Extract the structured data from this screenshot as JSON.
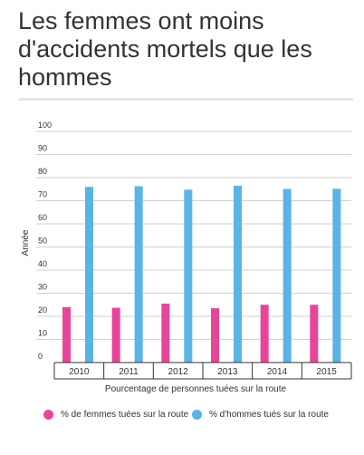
{
  "title": "Les femmes ont moins d'accidents mortels que les hommes",
  "chart_data": {
    "type": "bar",
    "categories": [
      "2010",
      "2011",
      "2012",
      "2013",
      "2014",
      "2015"
    ],
    "series": [
      {
        "name": "% de femmes tuées sur la route",
        "color": "#e8459a",
        "values": [
          24,
          23.7,
          25.5,
          23.5,
          25,
          25
        ]
      },
      {
        "name": "% d'hommes tués sur la route",
        "color": "#5ab4e5",
        "values": [
          76,
          76.3,
          74.8,
          76.5,
          75.1,
          75.2
        ]
      }
    ],
    "ylim": [
      0,
      100
    ],
    "yticks": [
      0,
      10,
      20,
      30,
      40,
      50,
      60,
      70,
      80,
      90,
      100
    ],
    "ylabel": "Année",
    "xlabel": "Pourcentage de personnes tuées sur la route",
    "grid": true,
    "legend_position": "bottom"
  }
}
